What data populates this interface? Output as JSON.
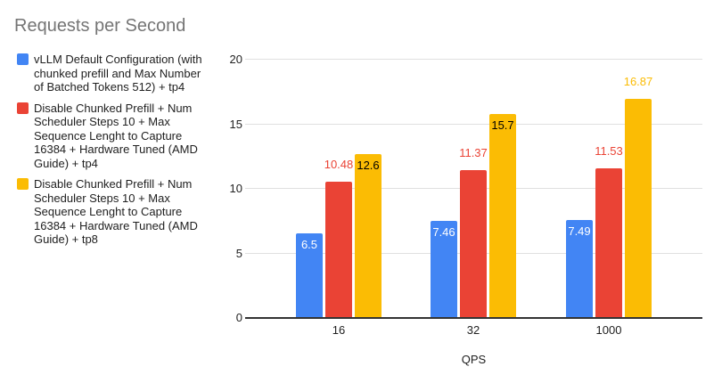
{
  "title": "Requests per Second",
  "legend": {
    "items": [
      {
        "label": "vLLM Default Configuration (with\nchunked prefill and Max Number\nof Batched Tokens 512) + tp4",
        "color": "#4285F4"
      },
      {
        "label": "Disable Chunked Prefill + Num\nScheduler Steps 10 + Max\nSequence Lenght to Capture\n16384 + Hardware Tuned (AMD\nGuide) + tp4",
        "color": "#EA4335"
      },
      {
        "label": "Disable Chunked Prefill + Num\nScheduler Steps 10 + Max\nSequence Lenght to Capture\n16384 + Hardware Tuned (AMD\nGuide) + tp8",
        "color": "#FBBC04"
      }
    ]
  },
  "chart_data": {
    "type": "bar",
    "title": "Requests per Second",
    "categories": [
      "16",
      "32",
      "1000"
    ],
    "series": [
      {
        "name": "vLLM Default Configuration (with chunked prefill and Max Number of Batched Tokens 512) + tp4",
        "color": "#4285F4",
        "values": [
          6.5,
          7.46,
          7.49
        ],
        "labels": [
          "6.5",
          "7.46",
          "7.49"
        ],
        "label_placement": [
          "inside",
          "inside",
          "inside"
        ],
        "inside_label_color": "#ffffff"
      },
      {
        "name": "Disable Chunked Prefill + Num Scheduler Steps 10 + Max Sequence Lenght to Capture 16384 + Hardware Tuned (AMD Guide) + tp4",
        "color": "#EA4335",
        "values": [
          10.48,
          11.37,
          11.53
        ],
        "labels": [
          "10.48",
          "11.37",
          "11.53"
        ],
        "label_placement": [
          "outside",
          "outside",
          "outside"
        ],
        "inside_label_color": "#000000"
      },
      {
        "name": "Disable Chunked Prefill + Num Scheduler Steps 10 + Max Sequence Lenght to Capture 16384 + Hardware Tuned (AMD Guide) + tp8",
        "color": "#FBBC04",
        "values": [
          12.6,
          15.7,
          16.87
        ],
        "labels": [
          "12.6",
          "15.7",
          "16.87"
        ],
        "label_placement": [
          "inside",
          "inside",
          "outside"
        ],
        "inside_label_color": "#000000"
      }
    ],
    "xlabel": "QPS",
    "ylabel": "",
    "ylim": [
      0,
      20
    ],
    "yticks": [
      0,
      5,
      10,
      15,
      20
    ],
    "grid": true,
    "legend_position": "left"
  },
  "colors": {
    "background": "#ffffff",
    "title_text": "#757575",
    "tick_text": "#212121",
    "gridline": "#e0e0e0",
    "baseline": "#333333"
  }
}
